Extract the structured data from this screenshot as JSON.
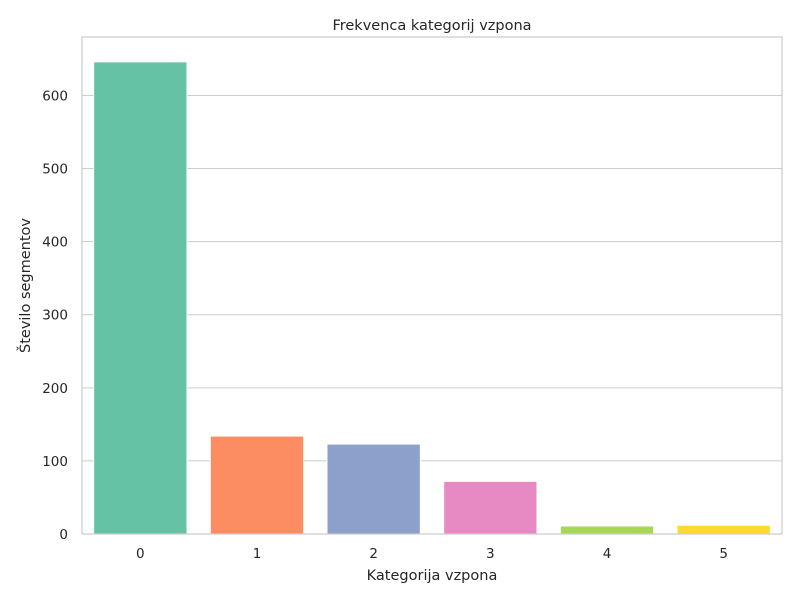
{
  "chart_data": {
    "type": "bar",
    "title": "Frekvenca kategorij vzpona",
    "xlabel": "Kategorija vzpona",
    "ylabel": "Število segmentov",
    "categories": [
      "0",
      "1",
      "2",
      "3",
      "4",
      "5"
    ],
    "values": [
      646,
      134,
      123,
      72,
      11,
      12
    ],
    "colors": [
      "#66c2a5",
      "#fc8d62",
      "#8da0cb",
      "#e78ac3",
      "#a6d854",
      "#ffd92f"
    ],
    "ylim": [
      0,
      680
    ],
    "yticks": [
      0,
      100,
      200,
      300,
      400,
      500,
      600
    ],
    "grid": true,
    "legend": "none"
  }
}
